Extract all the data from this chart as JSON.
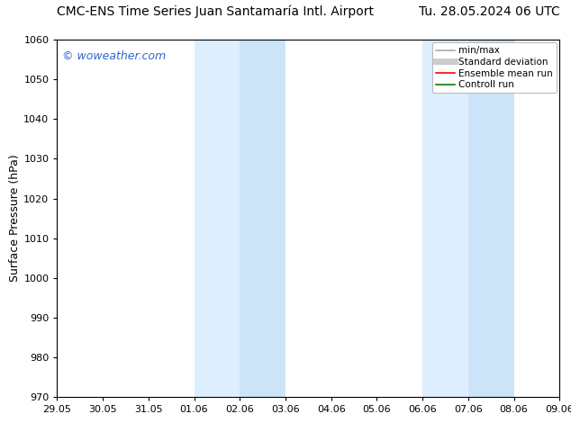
{
  "title_left": "CMC-ENS Time Series Juan Santamaría Intl. Airport",
  "title_right": "Tu. 28.05.2024 06 UTC",
  "ylabel": "Surface Pressure (hPa)",
  "ylim": [
    970,
    1060
  ],
  "yticks": [
    970,
    980,
    990,
    1000,
    1010,
    1020,
    1030,
    1040,
    1050,
    1060
  ],
  "xtick_labels": [
    "29.05",
    "30.05",
    "31.05",
    "01.06",
    "02.06",
    "03.06",
    "04.06",
    "05.06",
    "06.06",
    "07.06",
    "08.06",
    "09.06"
  ],
  "background_color": "#ffffff",
  "plot_bg_color": "#ffffff",
  "shaded_regions": [
    {
      "xstart": 3.0,
      "xend": 4.0,
      "color": "#ddeeff"
    },
    {
      "xstart": 4.0,
      "xend": 5.0,
      "color": "#cce4f7"
    },
    {
      "xstart": 8.0,
      "xend": 9.0,
      "color": "#ddeeff"
    },
    {
      "xstart": 9.0,
      "xend": 10.0,
      "color": "#cce4f7"
    }
  ],
  "watermark": "© woweather.com",
  "watermark_color": "#3366cc",
  "legend_items": [
    {
      "label": "min/max",
      "color": "#aaaaaa",
      "lw": 1.2,
      "style": "solid"
    },
    {
      "label": "Standard deviation",
      "color": "#cccccc",
      "lw": 5,
      "style": "solid"
    },
    {
      "label": "Ensemble mean run",
      "color": "#ff0000",
      "lw": 1.2,
      "style": "solid"
    },
    {
      "label": "Controll run",
      "color": "#008000",
      "lw": 1.2,
      "style": "solid"
    }
  ],
  "spine_color": "#000000",
  "title_fontsize": 10,
  "tick_fontsize": 8,
  "ylabel_fontsize": 9,
  "watermark_fontsize": 9,
  "legend_fontsize": 7.5
}
